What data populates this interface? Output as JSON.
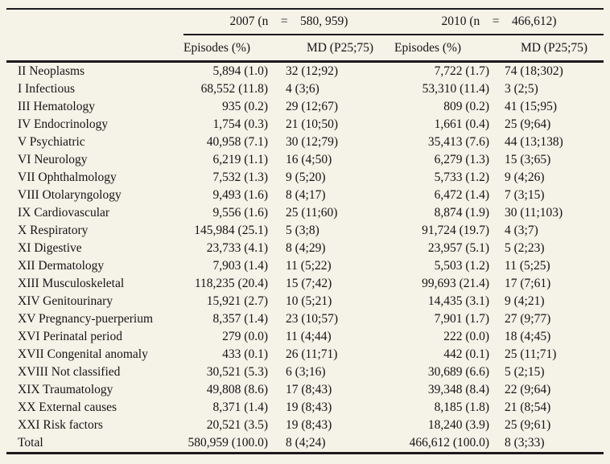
{
  "page": {
    "background_color": "#f5f2e8",
    "rule_color": "#1a1a1a",
    "text_color": "#141414"
  },
  "table": {
    "groups": [
      {
        "label": "2007 (n    =    580, 959)"
      },
      {
        "label": "2010 (n    =    466,612)"
      }
    ],
    "sub_headers": [
      "Episodes (%)",
      "MD (P25;75)",
      "Episodes (%)",
      "MD (P25;75)"
    ],
    "rows": [
      {
        "category": "II Neoplasms",
        "values": [
          "5,894 (1.0)",
          "32 (12;92)",
          "7,722 (1.7)",
          "74 (18;302)"
        ]
      },
      {
        "category": "I Infectious",
        "values": [
          "68,552 (11.8)",
          "4 (3;6)",
          "53,310 (11.4)",
          "3 (2;5)"
        ]
      },
      {
        "category": "III Hematology",
        "values": [
          "935 (0.2)",
          "29 (12;67)",
          "809 (0.2)",
          "41 (15;95)"
        ]
      },
      {
        "category": "IV Endocrinology",
        "values": [
          "1,754 (0.3)",
          "21 (10;50)",
          "1,661 (0.4)",
          "25 (9;64)"
        ]
      },
      {
        "category": "V Psychiatric",
        "values": [
          "40,958 (7.1)",
          "30 (12;79)",
          "35,413 (7.6)",
          "44 (13;138)"
        ]
      },
      {
        "category": "VI Neurology",
        "values": [
          "6,219 (1.1)",
          "16 (4;50)",
          "6,279 (1.3)",
          "15 (3;65)"
        ]
      },
      {
        "category": "VII Ophthalmology",
        "values": [
          "7,532 (1.3)",
          "9 (5;20)",
          "5,733 (1.2)",
          "9 (4;26)"
        ]
      },
      {
        "category": "VIII Otolaryngology",
        "values": [
          "9,493 (1.6)",
          "8 (4;17)",
          "6,472 (1.4)",
          "7 (3;15)"
        ]
      },
      {
        "category": "IX Cardiovascular",
        "values": [
          "9,556 (1.6)",
          "25 (11;60)",
          "8,874 (1.9)",
          "30 (11;103)"
        ]
      },
      {
        "category": "X Respiratory",
        "values": [
          "145,984 (25.1)",
          "5 (3;8)",
          "91,724 (19.7)",
          "4 (3;7)"
        ]
      },
      {
        "category": "XI Digestive",
        "values": [
          "23,733 (4.1)",
          "8 (4;29)",
          "23,957 (5.1)",
          "5 (2;23)"
        ]
      },
      {
        "category": "XII Dermatology",
        "values": [
          "7,903 (1.4)",
          "11 (5;22)",
          "5,503 (1.2)",
          "11 (5;25)"
        ]
      },
      {
        "category": "XIII Musculoskeletal",
        "values": [
          "118,235 (20.4)",
          "15 (7;42)",
          "99,693 (21.4)",
          "17 (7;61)"
        ]
      },
      {
        "category": "XIV Genitourinary",
        "values": [
          "15,921 (2.7)",
          "10 (5;21)",
          "14,435 (3.1)",
          "9 (4;21)"
        ]
      },
      {
        "category": "XV Pregnancy-puerperium",
        "values": [
          "8,357 (1.4)",
          "23 (10;57)",
          "7,901 (1.7)",
          "27 (9;77)"
        ]
      },
      {
        "category": "XVI Perinatal period",
        "values": [
          "279 (0.0)",
          "11 (4;44)",
          "222 (0.0)",
          "18 (4;45)"
        ]
      },
      {
        "category": "XVII Congenital anomaly",
        "values": [
          "433 (0.1)",
          "26 (11;71)",
          "442 (0.1)",
          "25 (11;71)"
        ]
      },
      {
        "category": "XVIII Not classified",
        "values": [
          "30,521 (5.3)",
          "6 (3;16)",
          "30,689 (6.6)",
          "5 (2;15)"
        ]
      },
      {
        "category": "XIX Traumatology",
        "values": [
          "49,808 (8.6)",
          "17 (8;43)",
          "39,348 (8.4)",
          "22 (9;64)"
        ]
      },
      {
        "category": "XX External causes",
        "values": [
          "8,371 (1.4)",
          "19 (8;43)",
          "8,185 (1.8)",
          "21 (8;54)"
        ]
      },
      {
        "category": "XXI Risk factors",
        "values": [
          "20,521 (3.5)",
          "19 (8;43)",
          "18,240 (3.9)",
          "25 (9;61)"
        ]
      },
      {
        "category": "Total",
        "values": [
          "580,959 (100.0)",
          "8 (4;24)",
          "466,612 (100.0)",
          "8 (3;33)"
        ]
      }
    ]
  }
}
